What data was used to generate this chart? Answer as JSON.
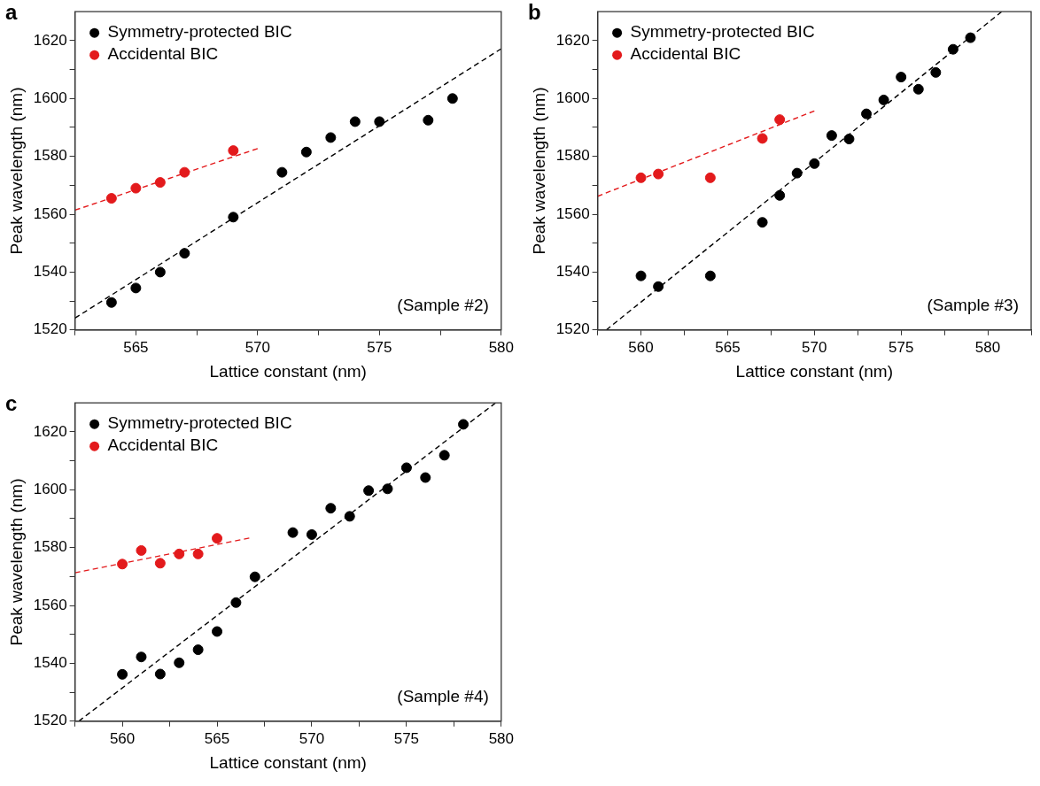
{
  "chart_data": [
    {
      "type": "scatter",
      "title": "a",
      "xlabel": "Lattice constant (nm)",
      "ylabel": "Peak wavelength (nm)",
      "xlim": [
        562.5,
        580
      ],
      "xticks": [
        {
          "value": 562.5,
          "label": null
        },
        565,
        {
          "value": 567.5,
          "label": null
        },
        570,
        {
          "value": 572.5,
          "label": null
        },
        575,
        {
          "value": 577.5,
          "label": null
        },
        580
      ],
      "ylim": [
        1520,
        1630
      ],
      "yticks": [
        1520,
        {
          "value": 1530,
          "label": null
        },
        1540,
        {
          "value": 1550,
          "label": null
        },
        1560,
        {
          "value": 1570,
          "label": null
        },
        1580,
        {
          "value": 1590,
          "label": null
        },
        1600,
        {
          "value": 1610,
          "label": null
        },
        1620
      ],
      "grid": false,
      "legend": "top left",
      "marker": "circle",
      "annotations": [
        "(Sample #2)"
      ],
      "series": [
        {
          "name": "Symmetry-protected BIC",
          "color": "#000000",
          "x": [
            564,
            565,
            566,
            567,
            569,
            571,
            572,
            573,
            574,
            575,
            577,
            578
          ],
          "values": [
            1529.5,
            1534.5,
            1540,
            1546.5,
            1559,
            1574.5,
            1581.5,
            1586.5,
            1592,
            1592,
            1592.5,
            1600
          ]
        },
        {
          "name": "Accidental BIC",
          "color": "#e31a1c",
          "x": [
            564,
            565,
            566,
            567,
            569
          ],
          "values": [
            1565.5,
            1569,
            1571,
            1574.5,
            1582
          ]
        },
        {
          "type": "line",
          "line_style": "dashed",
          "marker": "none",
          "color": "#000000",
          "x": [
            562.5,
            580
          ],
          "values": [
            1524.1,
            1617.2
          ]
        },
        {
          "type": "line",
          "line_style": "dashed",
          "marker": "none",
          "color": "#e31a1c",
          "x": [
            562.5,
            570
          ],
          "values": [
            1561.4,
            1582.7
          ]
        }
      ]
    },
    {
      "type": "scatter",
      "title": "b",
      "xlabel": "Lattice constant (nm)",
      "ylabel": "Peak wavelength (nm)",
      "xlim": [
        557.5,
        582.5
      ],
      "xticks": [
        {
          "value": 557.5,
          "label": null
        },
        560,
        {
          "value": 562.5,
          "label": null
        },
        565,
        {
          "value": 567.5,
          "label": null
        },
        570,
        {
          "value": 572.5,
          "label": null
        },
        575,
        {
          "value": 577.5,
          "label": null
        },
        580,
        {
          "value": 582.5,
          "label": null
        }
      ],
      "ylim": [
        1520,
        1630
      ],
      "yticks": [
        1520,
        {
          "value": 1530,
          "label": null
        },
        1540,
        {
          "value": 1550,
          "label": null
        },
        1560,
        {
          "value": 1570,
          "label": null
        },
        1580,
        {
          "value": 1590,
          "label": null
        },
        1600,
        {
          "value": 1610,
          "label": null
        },
        1620
      ],
      "grid": false,
      "legend": "top left",
      "marker": "circle",
      "annotations": [
        "(Sample #3)"
      ],
      "series": [
        {
          "name": "Symmetry-protected BIC",
          "color": "#000000",
          "x": [
            560,
            561,
            564,
            567,
            568,
            569,
            570,
            571,
            572,
            573,
            574,
            575,
            576,
            577,
            578,
            579
          ],
          "values": [
            1538.7,
            1535,
            1538.7,
            1557.2,
            1566.5,
            1574.2,
            1577.5,
            1587.2,
            1586,
            1594.7,
            1599.5,
            1607.4,
            1603.2,
            1609,
            1617,
            1621
          ]
        },
        {
          "name": "Accidental BIC",
          "color": "#e31a1c",
          "x": [
            560,
            561,
            564,
            567,
            568
          ],
          "values": [
            1572.6,
            1573.9,
            1572.6,
            1586.2,
            1592.7
          ]
        },
        {
          "type": "line",
          "line_style": "dashed",
          "marker": "none",
          "color": "#000000",
          "x": [
            558,
            580.8
          ],
          "values": [
            1520,
            1630
          ]
        },
        {
          "type": "line",
          "line_style": "dashed",
          "marker": "none",
          "color": "#e31a1c",
          "x": [
            557.5,
            570
          ],
          "values": [
            1566.2,
            1595.7
          ]
        }
      ]
    },
    {
      "type": "scatter",
      "title": "c",
      "xlabel": "Lattice constant (nm)",
      "ylabel": "Peak wavelength (nm)",
      "xlim": [
        557.5,
        580
      ],
      "xticks": [
        {
          "value": 557.5,
          "label": null
        },
        560,
        {
          "value": 562.5,
          "label": null
        },
        565,
        {
          "value": 567.5,
          "label": null
        },
        570,
        {
          "value": 572.5,
          "label": null
        },
        575,
        {
          "value": 577.5,
          "label": null
        },
        580
      ],
      "ylim": [
        1520,
        1630
      ],
      "yticks": [
        1520,
        {
          "value": 1530,
          "label": null
        },
        1540,
        {
          "value": 1550,
          "label": null
        },
        1560,
        {
          "value": 1570,
          "label": null
        },
        1580,
        {
          "value": 1590,
          "label": null
        },
        1600,
        {
          "value": 1610,
          "label": null
        },
        1620
      ],
      "grid": false,
      "legend": "top left",
      "marker": "circle",
      "annotations": [
        "(Sample #4)"
      ],
      "series": [
        {
          "name": "Symmetry-protected BIC",
          "color": "#000000",
          "x": [
            560,
            561,
            562,
            563,
            564,
            565,
            566,
            567,
            569,
            570,
            571,
            572,
            573,
            574,
            575,
            576,
            577,
            578
          ],
          "values": [
            1536.2,
            1542.2,
            1536.3,
            1540.2,
            1544.7,
            1551,
            1561,
            1569.9,
            1585.2,
            1584.5,
            1593.6,
            1590.8,
            1599.7,
            1600.3,
            1607.6,
            1604.2,
            1611.9,
            1622.6
          ]
        },
        {
          "name": "Accidental BIC",
          "color": "#e31a1c",
          "x": [
            560,
            561,
            562,
            563,
            564,
            565
          ],
          "values": [
            1574.3,
            1579,
            1574.6,
            1577.8,
            1577.8,
            1583.2
          ]
        },
        {
          "type": "line",
          "line_style": "dashed",
          "marker": "none",
          "color": "#000000",
          "x": [
            557.7,
            579.7
          ],
          "values": [
            1520,
            1630
          ]
        },
        {
          "type": "line",
          "line_style": "dashed",
          "marker": "none",
          "color": "#e31a1c",
          "x": [
            557.5,
            566.7
          ],
          "values": [
            1571.3,
            1583.3
          ]
        }
      ]
    }
  ]
}
